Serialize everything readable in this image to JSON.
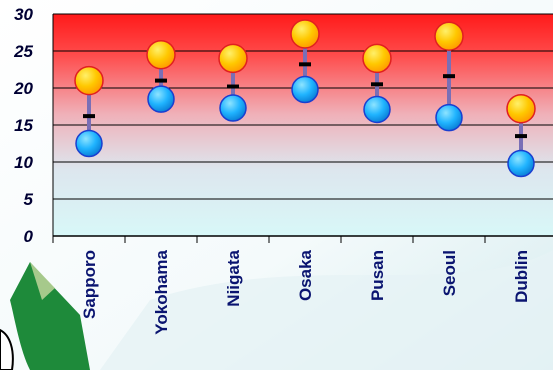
{
  "chart_data": {
    "type": "dot-range",
    "categories": [
      "Sapporo",
      "Yokohama",
      "Niigata",
      "Osaka",
      "Pusan",
      "Seoul",
      "Dublin"
    ],
    "series": [
      {
        "values": [
          21,
          24.5,
          24,
          27.3,
          24,
          27,
          17.2
        ]
      },
      {
        "values": [
          16.2,
          21,
          20.2,
          23.2,
          20.5,
          21.6,
          13.5
        ]
      },
      {
        "values": [
          12.5,
          18.5,
          17.3,
          19.8,
          17.1,
          16,
          9.8
        ]
      }
    ],
    "yticks": [
      "0",
      "5",
      "10",
      "15",
      "20",
      "25",
      "30"
    ],
    "ylim": [
      0,
      30
    ],
    "grid": true,
    "colors": {
      "high_marker": "#ffc800",
      "low_marker": "#20b4ff",
      "mid_marker": "#000000",
      "range_line": "#7a6fb6",
      "plot_top": "#ff1a1a",
      "plot_bottom": "#d8f8f8",
      "xtick_text": "#0a1470",
      "ytick_text": "#000033"
    }
  }
}
